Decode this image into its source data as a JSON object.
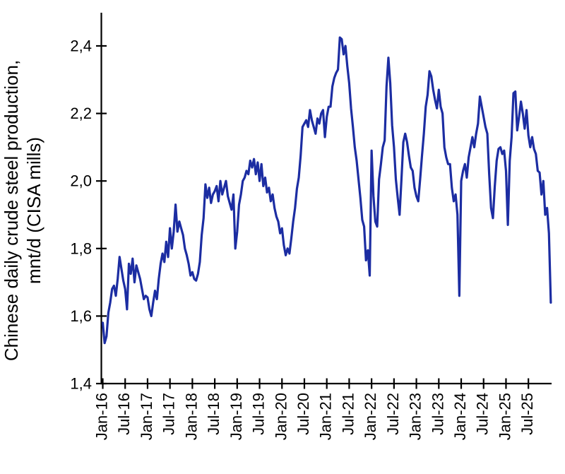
{
  "chart_data": {
    "type": "line",
    "title": "",
    "ylabel": "Chinese daily crude steel production, mnt/d (CISA mills)",
    "xlabel": "",
    "legend": "none",
    "grid": "off",
    "line_color": "#1c2da2",
    "axis_color": "#000000",
    "y_axis": {
      "label_lines": [
        "Chinese daily crude steel production,",
        "mnt/d (CISA mills)"
      ],
      "tick_values": [
        1.4,
        1.6,
        1.8,
        2.0,
        2.2,
        2.4
      ],
      "tick_labels": [
        "1,4",
        "1,6",
        "1,8",
        "2,0",
        "2,2",
        "2,4"
      ],
      "min": 1.4,
      "max": 2.5,
      "decimal_separator": "comma"
    },
    "x_axis": {
      "tick_labels": [
        "Jan-16",
        "Jul-16",
        "Jan-17",
        "Jul-17",
        "Jan-18",
        "Jul-18",
        "Jan-19",
        "Jul-19",
        "Jan-20",
        "Jul-20",
        "Jan-21",
        "Jul-21",
        "Jan-22",
        "Jul-22",
        "Jan-23",
        "Jul-23",
        "Jan-24",
        "Jul-24",
        "Jan-25",
        "Jul-25"
      ],
      "start": "Jan-2016",
      "end": "Dec-2025",
      "label_rotation_deg": -90
    },
    "series": [
      {
        "name": "Chinese daily crude steel production (CISA mills)",
        "unit": "mnt/d",
        "frequency": "semi-monthly (2 points per month, Jan-2016 through Dec-2025, plus final reading)",
        "notable_points": {
          "start_Jan16": 1.58,
          "low_Jan16": 1.51,
          "peak_Apr_May21": 2.42,
          "trough_Dec21": 1.72,
          "peak_May22": 2.36,
          "peak_Apr23": 2.33,
          "spike_low_late_Dec23": 1.66,
          "peak_Jun24": 2.25,
          "trough_Sep24": 1.89,
          "peak_Mar25": 2.27,
          "final_value": 1.64
        },
        "values": [
          1.58,
          1.52,
          1.54,
          1.61,
          1.64,
          1.68,
          1.69,
          1.66,
          1.71,
          1.775,
          1.74,
          1.705,
          1.68,
          1.62,
          1.755,
          1.725,
          1.77,
          1.7,
          1.75,
          1.73,
          1.71,
          1.68,
          1.65,
          1.66,
          1.655,
          1.62,
          1.6,
          1.64,
          1.675,
          1.65,
          1.71,
          1.755,
          1.785,
          1.76,
          1.82,
          1.775,
          1.86,
          1.8,
          1.85,
          1.93,
          1.85,
          1.88,
          1.86,
          1.84,
          1.8,
          1.78,
          1.755,
          1.72,
          1.73,
          1.71,
          1.705,
          1.725,
          1.76,
          1.84,
          1.89,
          1.99,
          1.95,
          1.98,
          1.935,
          1.96,
          1.97,
          1.985,
          1.94,
          2.0,
          1.96,
          1.98,
          2.0,
          1.955,
          1.935,
          1.915,
          1.96,
          1.8,
          1.85,
          1.93,
          1.96,
          2.0,
          2.01,
          2.03,
          2.02,
          2.06,
          2.04,
          2.065,
          2.02,
          2.055,
          2.0,
          2.05,
          1.985,
          2.01,
          1.966,
          1.98,
          1.94,
          1.96,
          1.92,
          1.895,
          1.88,
          1.845,
          1.86,
          1.81,
          1.78,
          1.8,
          1.785,
          1.83,
          1.88,
          1.92,
          1.977,
          2.01,
          2.075,
          2.16,
          2.17,
          2.18,
          2.16,
          2.21,
          2.18,
          2.16,
          2.14,
          2.185,
          2.17,
          2.2,
          2.21,
          2.13,
          2.19,
          2.22,
          2.22,
          2.28,
          2.305,
          2.32,
          2.33,
          2.425,
          2.42,
          2.375,
          2.4,
          2.34,
          2.29,
          2.215,
          2.16,
          2.1,
          2.06,
          2.005,
          1.95,
          1.885,
          1.865,
          1.765,
          1.795,
          1.72,
          2.09,
          1.955,
          1.88,
          1.865,
          2.005,
          2.05,
          2.1,
          2.12,
          2.28,
          2.365,
          2.29,
          2.165,
          2.1,
          2.005,
          1.95,
          1.9,
          2.005,
          2.115,
          2.14,
          2.115,
          2.075,
          2.04,
          2.03,
          1.98,
          1.955,
          1.94,
          2.005,
          2.075,
          2.14,
          2.22,
          2.255,
          2.325,
          2.31,
          2.27,
          2.24,
          2.215,
          2.27,
          2.22,
          2.2,
          2.1,
          2.07,
          2.05,
          2.05,
          1.98,
          1.94,
          1.96,
          1.9,
          1.66,
          2.0,
          2.03,
          2.05,
          2.01,
          2.07,
          2.1,
          2.13,
          2.1,
          2.14,
          2.17,
          2.25,
          2.22,
          2.19,
          2.16,
          2.14,
          2.02,
          1.92,
          1.89,
          1.985,
          2.06,
          2.095,
          2.1,
          2.08,
          2.09,
          2.03,
          1.87,
          2.06,
          2.13,
          2.26,
          2.265,
          2.15,
          2.19,
          2.235,
          2.2,
          2.155,
          2.21,
          2.135,
          2.1,
          2.13,
          2.095,
          2.08,
          2.03,
          2.025,
          1.96,
          2.0,
          1.9,
          1.92,
          1.845,
          1.64
        ]
      }
    ]
  }
}
